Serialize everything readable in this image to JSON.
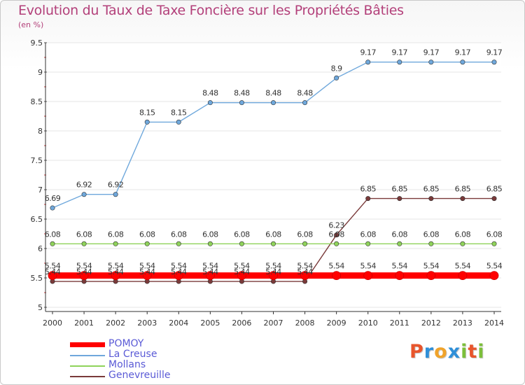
{
  "header": {
    "title": "Evolution du Taux de Taxe Foncière sur les Propriétés Bâties",
    "unit": "(en %)"
  },
  "brand": {
    "letters": [
      "P",
      "r",
      "o",
      "x",
      "i",
      "t",
      "i"
    ],
    "colors": [
      "#e8552c",
      "#2f8fd8",
      "#f0a32a",
      "#2f8fd8",
      "#7cbf3a",
      "#e8552c",
      "#7cbf3a"
    ]
  },
  "chart_data": {
    "type": "line",
    "title": "Evolution du Taux de Taxe Foncière sur les Propriétés Bâties",
    "ylabel": "(en %)",
    "xlabel": "",
    "ylim": [
      5,
      9.5
    ],
    "yticks": [
      5,
      5.5,
      6,
      6.5,
      7,
      7.5,
      8,
      8.5,
      9,
      9.5
    ],
    "ytick_labels": [
      "5",
      "5.5",
      "6",
      "6.5",
      "7",
      "7.5",
      "8",
      "8.5",
      "9",
      "9.5"
    ],
    "categories": [
      "2000",
      "2001",
      "2002",
      "2003",
      "2004",
      "2005",
      "2006",
      "2007",
      "2008",
      "2009",
      "2010",
      "2011",
      "2012",
      "2013",
      "2014"
    ],
    "series": [
      {
        "name": "POMOY",
        "color": "#ff0000",
        "values": [
          5.54,
          5.54,
          5.54,
          5.54,
          5.54,
          5.54,
          5.54,
          5.54,
          5.54,
          5.54,
          5.54,
          5.54,
          5.54,
          5.54,
          5.54
        ],
        "labels": [
          "5.54",
          "5.54",
          "5.54",
          "5.54",
          "5.54",
          "5.54",
          "5.54",
          "5.54",
          "5.54",
          "5.54",
          "5.54",
          "5.54",
          "5.54",
          "5.54",
          "5.54"
        ]
      },
      {
        "name": "La Creuse",
        "color": "#6fa8dc",
        "values": [
          6.69,
          6.92,
          6.92,
          8.15,
          8.15,
          8.48,
          8.48,
          8.48,
          8.48,
          8.9,
          9.17,
          9.17,
          9.17,
          9.17,
          9.17
        ],
        "labels": [
          "6.69",
          "6.92",
          "6.92",
          "8.15",
          "8.15",
          "8.48",
          "8.48",
          "8.48",
          "8.48",
          "8.9",
          "9.17",
          "9.17",
          "9.17",
          "9.17",
          "9.17"
        ]
      },
      {
        "name": "Mollans",
        "color": "#8fd35a",
        "values": [
          6.08,
          6.08,
          6.08,
          6.08,
          6.08,
          6.08,
          6.08,
          6.08,
          6.08,
          6.08,
          6.08,
          6.08,
          6.08,
          6.08,
          6.08
        ],
        "labels": [
          "6.08",
          "6.08",
          "6.08",
          "6.08",
          "6.08",
          "6.08",
          "6.08",
          "6.08",
          "6.08",
          "6.08",
          "6.08",
          "6.08",
          "6.08",
          "6.08",
          "6.08"
        ]
      },
      {
        "name": "Genevreuille",
        "color": "#7a3a3a",
        "values": [
          5.44,
          5.44,
          5.44,
          5.44,
          5.44,
          5.44,
          5.44,
          5.44,
          5.44,
          6.23,
          6.85,
          6.85,
          6.85,
          6.85,
          6.85
        ],
        "labels": [
          "5.44",
          "5.44",
          "5.44",
          "5.44",
          "5.44",
          "5.44",
          "5.44",
          "5.44",
          "5.44",
          "6.23",
          "6.85",
          "6.85",
          "6.85",
          "6.85",
          "6.85"
        ]
      }
    ],
    "legend": "bottom-left"
  }
}
